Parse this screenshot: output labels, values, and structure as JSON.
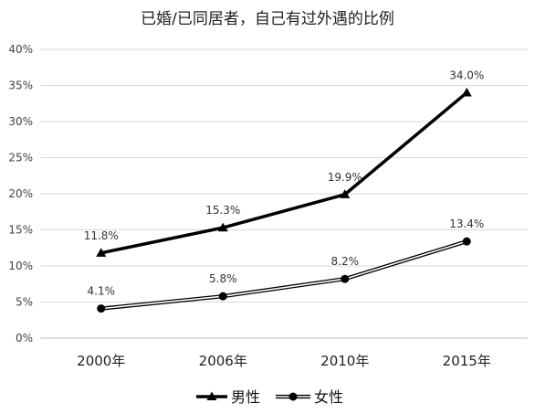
{
  "chart_data": {
    "type": "line",
    "title": "已婚/已同居者，自己有过外遇的比例",
    "categories": [
      "2000年",
      "2006年",
      "2010年",
      "2015年"
    ],
    "y_tick_labels": [
      "0%",
      "5%",
      "10%",
      "15%",
      "20%",
      "25%",
      "30%",
      "35%",
      "40%"
    ],
    "ylim": [
      0,
      40
    ],
    "grid": true,
    "legend_position": "bottom",
    "series": [
      {
        "name": "男性",
        "values": [
          11.8,
          15.3,
          19.9,
          34.0
        ],
        "labels": [
          "11.8%",
          "15.3%",
          "19.9%",
          "34.0%"
        ],
        "color": "#000000",
        "marker": "triangle",
        "line_style": "bold-solid"
      },
      {
        "name": "女性",
        "values": [
          4.1,
          5.8,
          8.2,
          13.4
        ],
        "labels": [
          "4.1%",
          "5.8%",
          "8.2%",
          "13.4%"
        ],
        "color": "#000000",
        "marker": "circle",
        "line_style": "double-thin"
      }
    ]
  }
}
